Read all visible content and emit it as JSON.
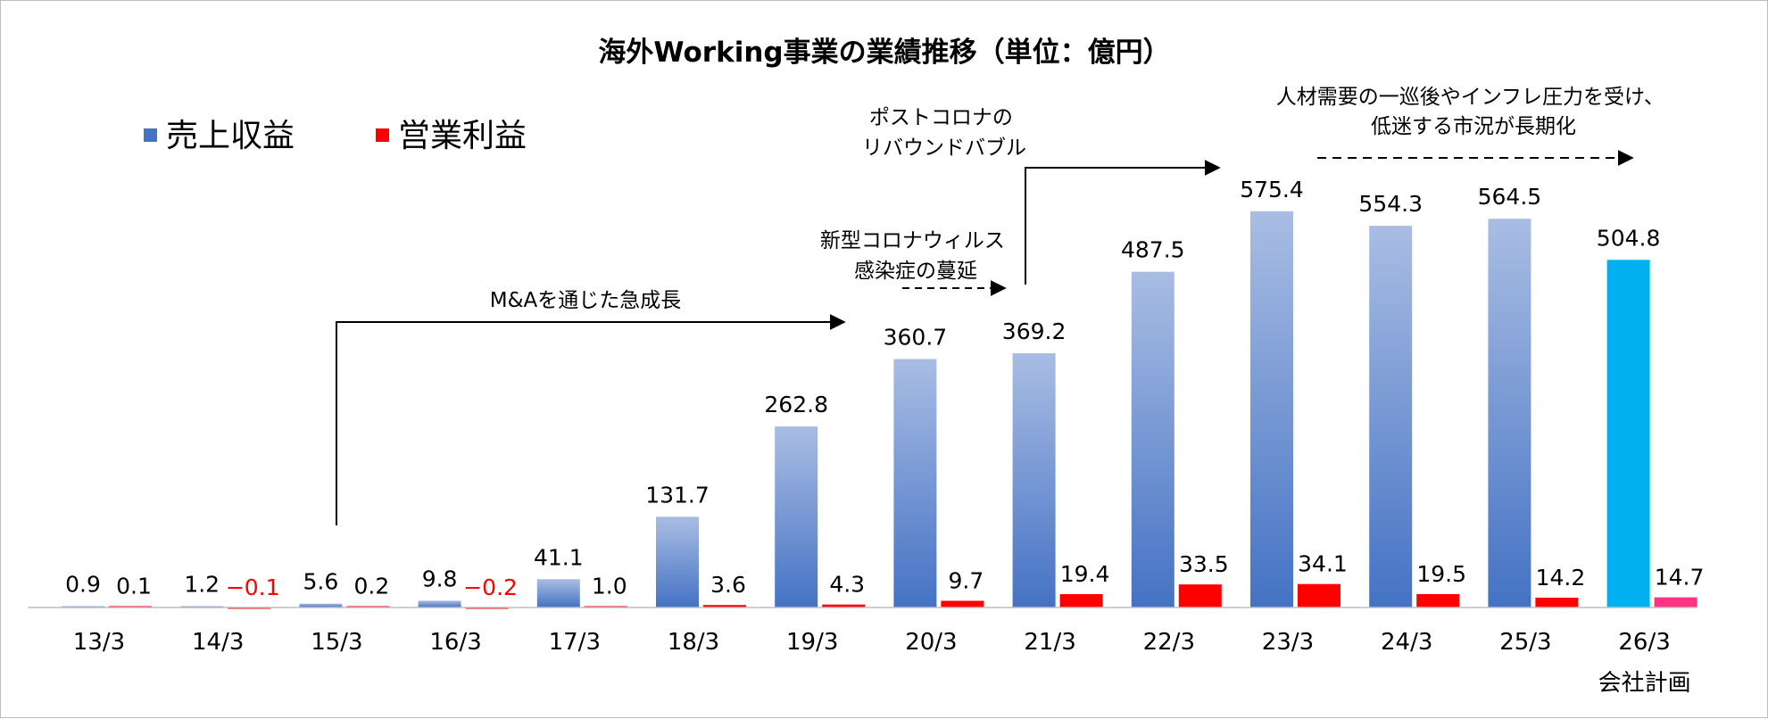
{
  "chart_data": {
    "type": "bar",
    "title": "海外Working事業の業績推移（単位：億円）",
    "categories": [
      "13/3",
      "14/3",
      "15/3",
      "16/3",
      "17/3",
      "18/3",
      "19/3",
      "20/3",
      "21/3",
      "22/3",
      "23/3",
      "24/3",
      "25/3",
      "26/3"
    ],
    "category_sublabels": [
      "",
      "",
      "",
      "",
      "",
      "",
      "",
      "",
      "",
      "",
      "",
      "",
      "",
      "会社計画"
    ],
    "series": [
      {
        "name": "売上収益",
        "color": "#4472c4",
        "highlight_color": "#00b0f0",
        "values": [
          0.9,
          1.2,
          5.6,
          9.8,
          41.1,
          131.7,
          262.8,
          360.7,
          369.2,
          487.5,
          575.4,
          554.3,
          564.5,
          504.8
        ],
        "labels": [
          "0.9",
          "1.2",
          "5.6",
          "9.8",
          "41.1",
          "131.7",
          "262.8",
          "360.7",
          "369.2",
          "487.5",
          "575.4",
          "554.3",
          "564.5",
          "504.8"
        ]
      },
      {
        "name": "営業利益",
        "color": "#ff0000",
        "highlight_color": "#ff3385",
        "values": [
          0.1,
          -0.1,
          0.2,
          -0.2,
          1.0,
          3.6,
          4.3,
          9.7,
          19.4,
          33.5,
          34.1,
          19.5,
          14.2,
          14.7
        ],
        "labels": [
          "0.1",
          "−0.1",
          "0.2",
          "−0.2",
          "1.0",
          "3.6",
          "4.3",
          "9.7",
          "19.4",
          "33.5",
          "34.1",
          "19.5",
          "14.2",
          "14.7"
        ]
      }
    ],
    "highlighted_category": "26/3",
    "ylim": [
      0,
      600
    ],
    "xlabel": "",
    "ylabel": "",
    "grid": false,
    "legend_position": "top-left",
    "annotations": [
      {
        "text": "M&Aを通じた急成長",
        "line_style": "solid"
      },
      {
        "text": "新型コロナウィルス\n感染症の蔓延",
        "line_style": "dashed"
      },
      {
        "text": "ポストコロナの\nリバウンドバブル",
        "line_style": "solid"
      },
      {
        "text": "人材需要の一巡後やインフレ圧力を受け、\n低迷する市況が長期化",
        "line_style": "dashed"
      }
    ]
  }
}
